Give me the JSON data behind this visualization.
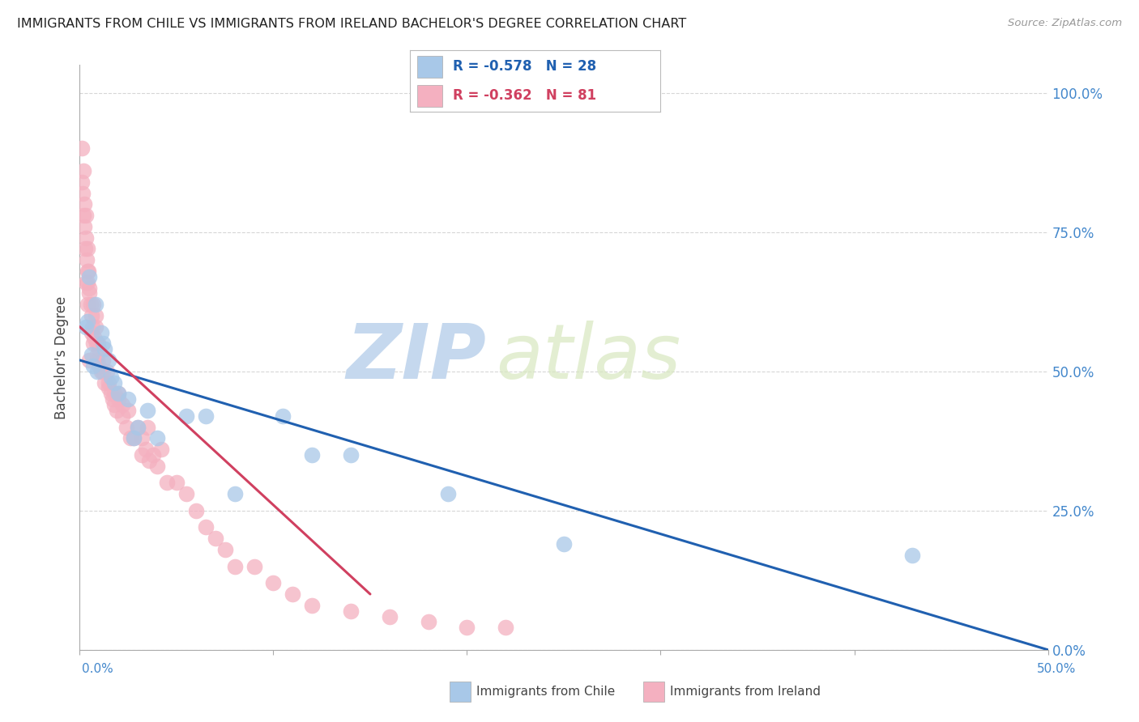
{
  "title": "IMMIGRANTS FROM CHILE VS IMMIGRANTS FROM IRELAND BACHELOR'S DEGREE CORRELATION CHART",
  "source_text": "Source: ZipAtlas.com",
  "ylabel": "Bachelor's Degree",
  "yticks_labels": [
    "0.0%",
    "25.0%",
    "50.0%",
    "75.0%",
    "100.0%"
  ],
  "ytick_vals": [
    0,
    25,
    50,
    75,
    100
  ],
  "xlim": [
    0,
    50
  ],
  "ylim": [
    0,
    105
  ],
  "chile_color": "#A8C8E8",
  "ireland_color": "#F4B0C0",
  "chile_line_color": "#2060B0",
  "ireland_line_color": "#D04060",
  "chile_label": "Immigrants from Chile",
  "ireland_label": "Immigrants from Ireland",
  "chile_R": -0.578,
  "chile_N": 28,
  "ireland_R": -0.362,
  "ireland_N": 81,
  "watermark_zip": "ZIP",
  "watermark_atlas": "atlas",
  "background_color": "#ffffff",
  "grid_color": "#cccccc",
  "legend_R_color": "#2060B0",
  "legend_N_color": "#2060B0",
  "chile_scatter_x": [
    0.5,
    1.2,
    0.8,
    1.5,
    0.3,
    0.9,
    1.1,
    0.6,
    1.8,
    0.4,
    2.0,
    1.3,
    0.7,
    1.6,
    3.5,
    2.5,
    4.0,
    5.5,
    6.5,
    8.0,
    10.5,
    14.0,
    19.0,
    25.0,
    43.0,
    2.8,
    3.0,
    12.0
  ],
  "chile_scatter_y": [
    67,
    55,
    62,
    52,
    58,
    50,
    57,
    53,
    48,
    59,
    46,
    54,
    51,
    49,
    43,
    45,
    38,
    42,
    42,
    28,
    42,
    35,
    28,
    19,
    17,
    38,
    40,
    35
  ],
  "ireland_scatter_x": [
    0.1,
    0.12,
    0.15,
    0.18,
    0.2,
    0.22,
    0.25,
    0.28,
    0.3,
    0.32,
    0.35,
    0.38,
    0.4,
    0.42,
    0.45,
    0.48,
    0.5,
    0.55,
    0.6,
    0.65,
    0.7,
    0.75,
    0.8,
    0.85,
    0.9,
    0.95,
    1.0,
    1.1,
    1.2,
    1.3,
    1.4,
    1.5,
    1.6,
    1.7,
    1.8,
    1.9,
    2.0,
    2.2,
    2.4,
    2.6,
    2.8,
    3.0,
    3.2,
    3.4,
    3.6,
    3.8,
    4.0,
    4.5,
    5.0,
    5.5,
    6.0,
    6.5,
    7.0,
    7.5,
    8.0,
    9.0,
    10.0,
    11.0,
    12.0,
    14.0,
    16.0,
    18.0,
    20.0,
    22.0,
    3.2,
    2.5,
    1.5,
    0.6,
    0.4,
    0.3,
    0.8,
    0.5,
    1.2,
    0.7,
    0.9,
    2.0,
    1.0,
    3.5,
    2.2,
    1.8,
    4.2
  ],
  "ireland_scatter_y": [
    90,
    84,
    82,
    78,
    86,
    80,
    76,
    72,
    78,
    74,
    70,
    68,
    72,
    66,
    68,
    64,
    65,
    62,
    60,
    58,
    62,
    56,
    60,
    55,
    52,
    55,
    54,
    50,
    52,
    48,
    50,
    47,
    46,
    45,
    44,
    43,
    46,
    42,
    40,
    38,
    38,
    40,
    38,
    36,
    34,
    35,
    33,
    30,
    30,
    28,
    25,
    22,
    20,
    18,
    15,
    15,
    12,
    10,
    8,
    7,
    6,
    5,
    4,
    4,
    35,
    43,
    48,
    57,
    62,
    66,
    58,
    52,
    50,
    55,
    53,
    45,
    51,
    40,
    44,
    46,
    36
  ],
  "chile_line_x0": 0.0,
  "chile_line_y0": 52.0,
  "chile_line_x1": 50.0,
  "chile_line_y1": 0.0,
  "ireland_line_x0": 0.0,
  "ireland_line_y0": 58.0,
  "ireland_line_x1": 15.0,
  "ireland_line_y1": 10.0
}
